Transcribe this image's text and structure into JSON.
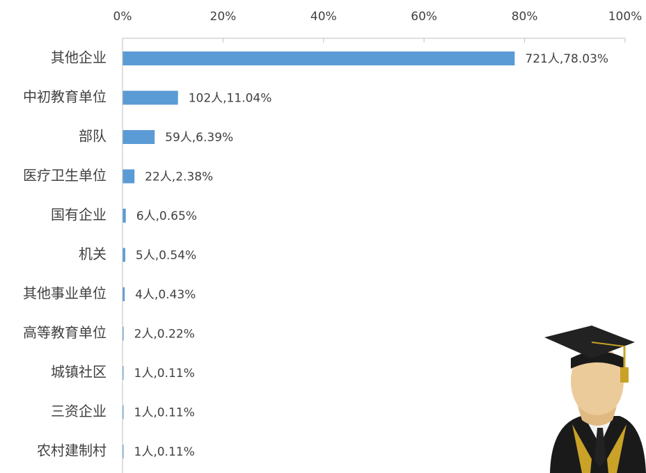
{
  "chart_data": {
    "type": "bar",
    "orientation": "horizontal",
    "color": "#5b9bd5",
    "categories": [
      "其他企业",
      "中初教育单位",
      "部队",
      "医疗卫生单位",
      "国有企业",
      "机关",
      "其他事业单位",
      "高等教育单位",
      "城镇社区",
      "三资企业",
      "农村建制村"
    ],
    "values": [
      78.03,
      11.04,
      6.39,
      2.38,
      0.65,
      0.54,
      0.43,
      0.22,
      0.11,
      0.11,
      0.11
    ],
    "value_labels": [
      "721人,78.03%",
      "102人,11.04%",
      "59人,6.39%",
      "22人,2.38%",
      "6人,0.65%",
      "5人,0.54%",
      "4人,0.43%",
      "2人,0.22%",
      "1人,0.11%",
      "1人,0.11%",
      "1人,0.11%"
    ],
    "xlim": [
      0,
      100
    ],
    "xticks": [
      {
        "value": 0,
        "label": "0%"
      },
      {
        "value": 20,
        "label": "20%"
      },
      {
        "value": 40,
        "label": "40%"
      },
      {
        "value": 60,
        "label": "60%"
      },
      {
        "value": 80,
        "label": "80%"
      },
      {
        "value": 100,
        "label": "100%"
      }
    ]
  }
}
